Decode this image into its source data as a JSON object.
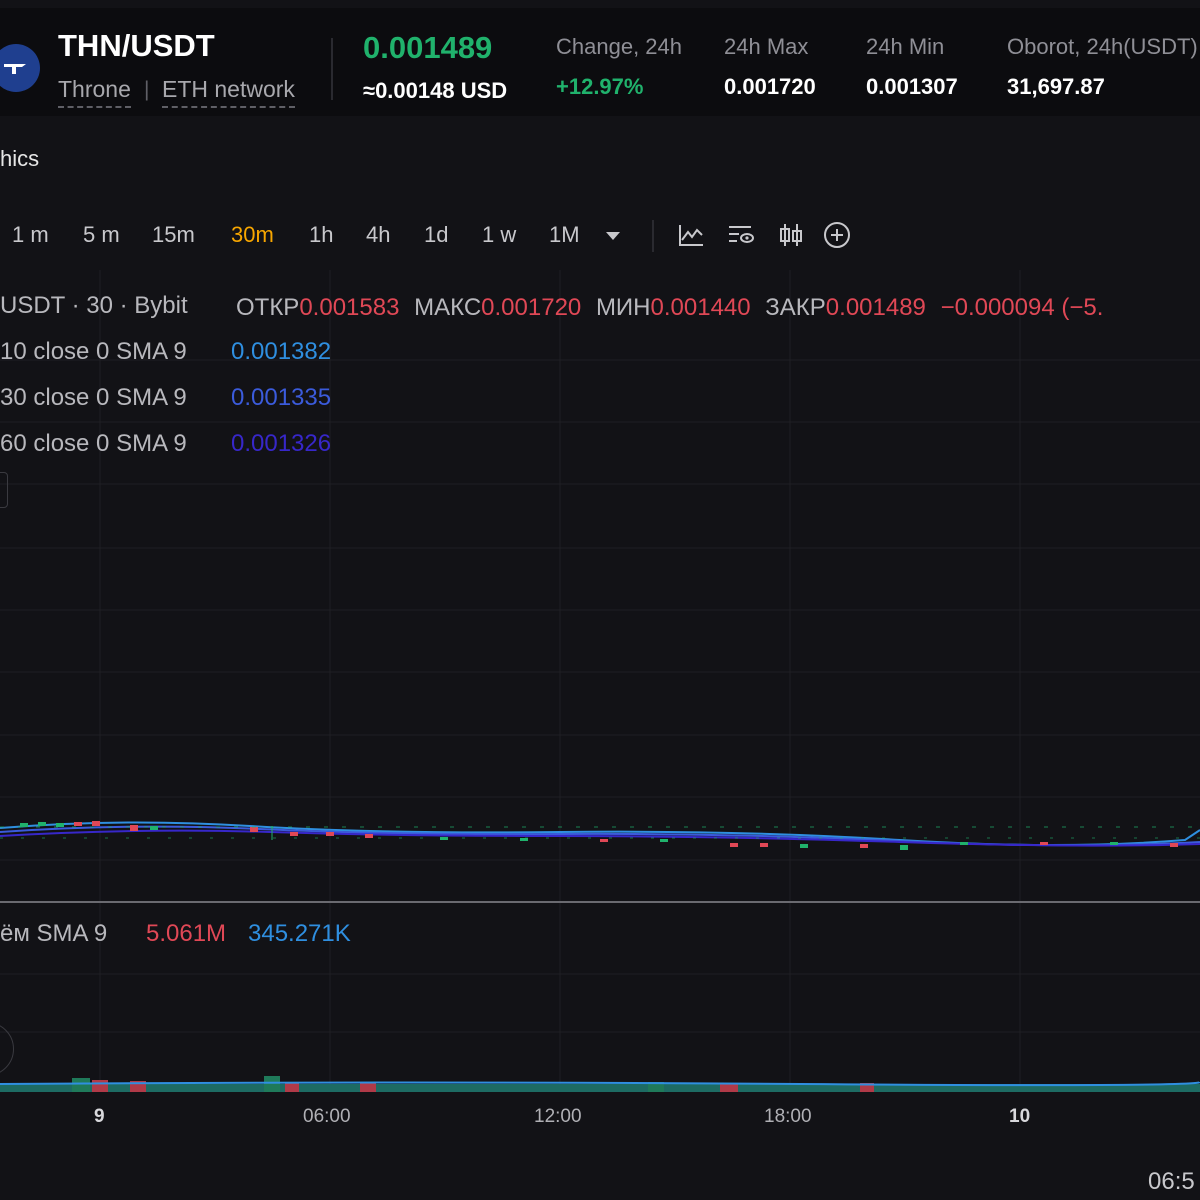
{
  "header": {
    "pair": "THN/USDT",
    "token_name": "Throne",
    "separator": "|",
    "network": "ETH network",
    "price": "0.001489",
    "usd_price": "≈0.00148 USD",
    "stats": [
      {
        "label": "Change, 24h",
        "value": "+12.97%"
      },
      {
        "label": "24h Max",
        "value": "0.001720"
      },
      {
        "label": "24h Min",
        "value": "0.001307"
      },
      {
        "label": "Oborot, 24h(USDT)",
        "value": "31,697.87"
      }
    ],
    "logo_icon": "throne-logo-icon"
  },
  "section_title": "hics",
  "timeframes": [
    "1 m",
    "5 m",
    "15m",
    "30m",
    "1h",
    "4h",
    "1d",
    "1 w",
    "1M"
  ],
  "active_timeframe": "30m",
  "toolbar_icons": [
    "dropdown-arrow-icon",
    "indicators-icon",
    "chart-settings-icon",
    "candlestick-type-icon",
    "add-icon"
  ],
  "ohlc": {
    "symbol_line": "USDT · 30 · Bybit",
    "open_label": "ОТКР",
    "open": "0.001583",
    "high_label": "МАКС",
    "high": "0.001720",
    "low_label": "МИН",
    "low": "0.001440",
    "close_label": "ЗАКР",
    "close": "0.001489",
    "change": "−0.000094 (−5."
  },
  "sma_lines": [
    {
      "label": "10 close 0 SMA 9",
      "value": "0.001382",
      "color": "#2f8fe0"
    },
    {
      "label": "30 close 0 SMA 9",
      "value": "0.001335",
      "color": "#3b5bdb"
    },
    {
      "label": "60 close 0 SMA 9",
      "value": "0.001326",
      "color": "#3727c9"
    }
  ],
  "volume": {
    "label": "ём SMA 9",
    "value1": "5.061M",
    "value2": "345.271K"
  },
  "x_axis": [
    "9",
    "06:00",
    "12:00",
    "18:00",
    "10"
  ],
  "clock": "06:5",
  "colors": {
    "up": "#20b26c",
    "down": "#e04856",
    "accent": "#f7a600"
  }
}
